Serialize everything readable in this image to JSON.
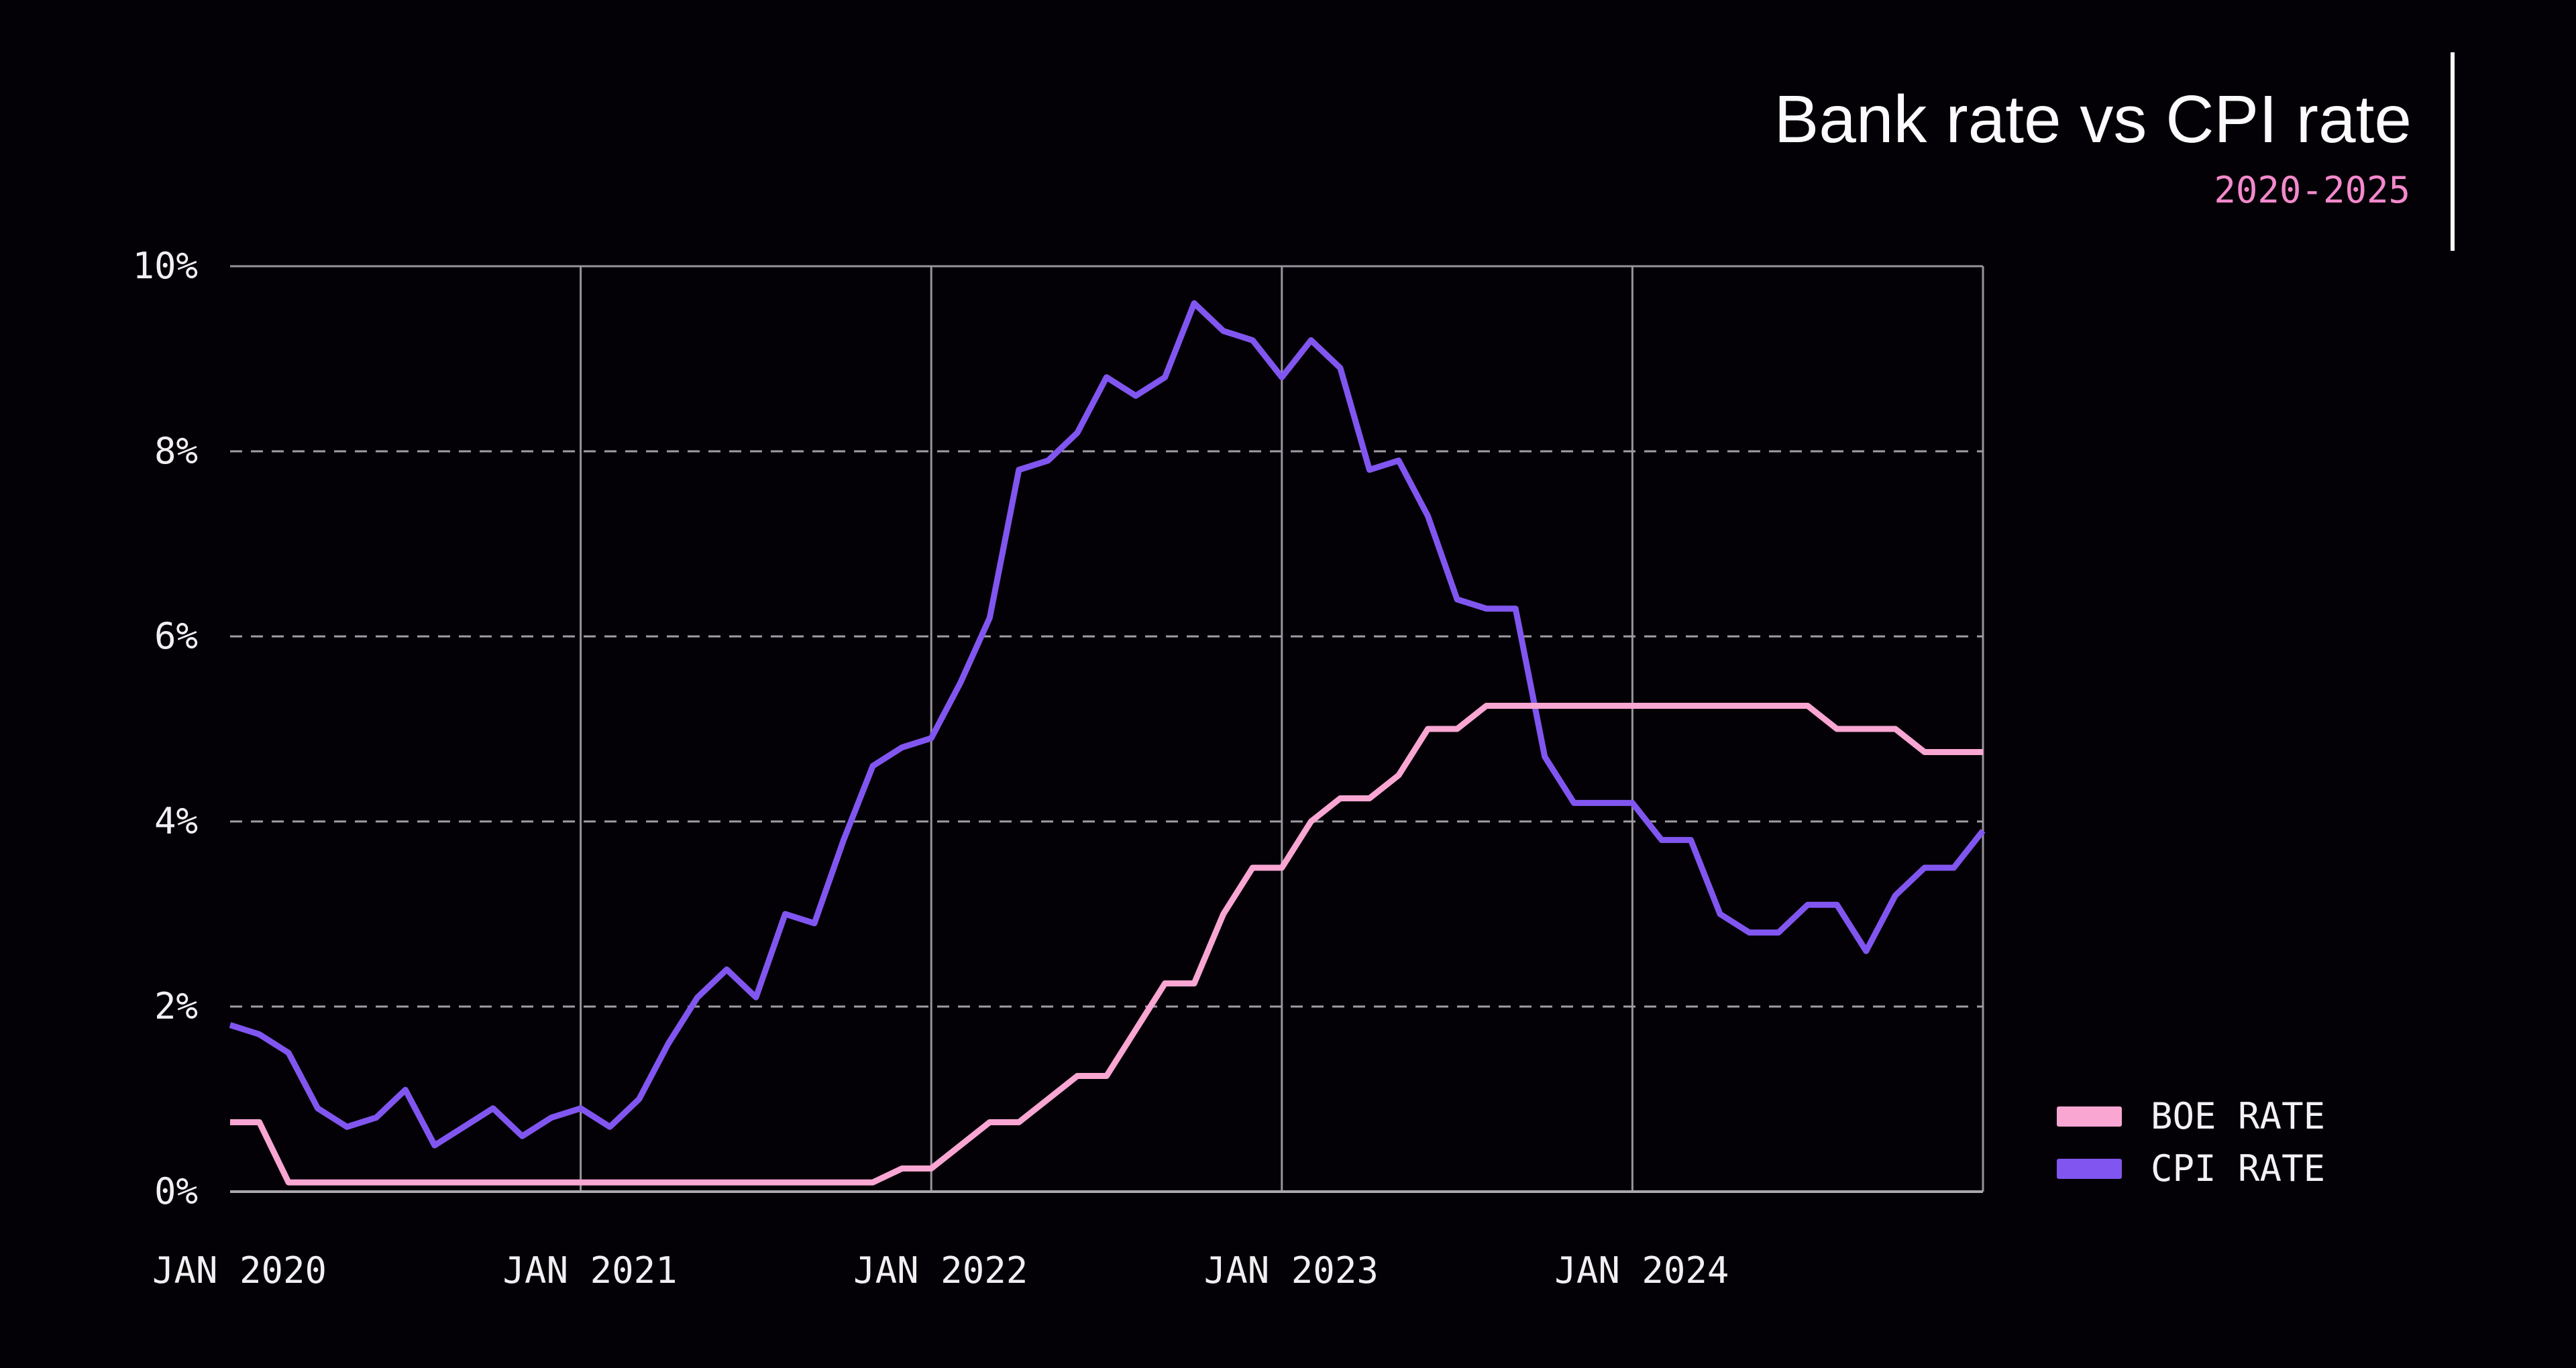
{
  "header": {
    "title": "Bank rate vs CPI rate",
    "subtitle": "2020-2025"
  },
  "colors": {
    "background": "#040106",
    "title_text": "#fbfafc",
    "subtitle_text": "#f489cd",
    "axis_label_text": "#f2eff3",
    "grid_solid": "#98949b",
    "grid_dashed": "#a09ca4",
    "axis_bottom": "#aaa7ae",
    "boe_line": "#f9a6d3",
    "cpi_line": "#8156f0"
  },
  "legend": {
    "items": [
      {
        "label": "BOE RATE",
        "color": "#f9a6d3"
      },
      {
        "label": "CPI RATE",
        "color": "#8156f0"
      }
    ]
  },
  "chart_data": {
    "type": "line",
    "title": "Bank rate vs CPI rate",
    "subtitle": "2020-2025",
    "xlabel": "",
    "ylabel": "",
    "ylim": [
      0,
      10
    ],
    "grid": "horizontal-dashed, vertical-solid at January of each year",
    "legend_position": "right-bottom",
    "y_tick_labels": [
      "0%",
      "2%",
      "4%",
      "6%",
      "8%",
      "10%"
    ],
    "y_tick_values": [
      0,
      2,
      4,
      6,
      8,
      10
    ],
    "x_tick_labels": [
      "JAN 2020",
      "JAN 2021",
      "JAN 2022",
      "JAN 2023",
      "JAN 2024"
    ],
    "x_tick_month_indices": [
      0,
      12,
      24,
      36,
      48
    ],
    "x_months": [
      "2020-01",
      "2020-02",
      "2020-03",
      "2020-04",
      "2020-05",
      "2020-06",
      "2020-07",
      "2020-08",
      "2020-09",
      "2020-10",
      "2020-11",
      "2020-12",
      "2021-01",
      "2021-02",
      "2021-03",
      "2021-04",
      "2021-05",
      "2021-06",
      "2021-07",
      "2021-08",
      "2021-09",
      "2021-10",
      "2021-11",
      "2021-12",
      "2022-01",
      "2022-02",
      "2022-03",
      "2022-04",
      "2022-05",
      "2022-06",
      "2022-07",
      "2022-08",
      "2022-09",
      "2022-10",
      "2022-11",
      "2022-12",
      "2023-01",
      "2023-02",
      "2023-03",
      "2023-04",
      "2023-05",
      "2023-06",
      "2023-07",
      "2023-08",
      "2023-09",
      "2023-10",
      "2023-11",
      "2023-12",
      "2024-01",
      "2024-02",
      "2024-03",
      "2024-04",
      "2024-05",
      "2024-06",
      "2024-07",
      "2024-08",
      "2024-09",
      "2024-10",
      "2024-11",
      "2024-12",
      "2025-01"
    ],
    "series": [
      {
        "name": "BOE RATE",
        "color": "#f9a6d3",
        "values": [
          0.75,
          0.75,
          0.1,
          0.1,
          0.1,
          0.1,
          0.1,
          0.1,
          0.1,
          0.1,
          0.1,
          0.1,
          0.1,
          0.1,
          0.1,
          0.1,
          0.1,
          0.1,
          0.1,
          0.1,
          0.1,
          0.1,
          0.1,
          0.25,
          0.25,
          0.5,
          0.75,
          0.75,
          1.0,
          1.25,
          1.25,
          1.75,
          2.25,
          2.25,
          3.0,
          3.5,
          3.5,
          4.0,
          4.25,
          4.25,
          4.5,
          5.0,
          5.0,
          5.25,
          5.25,
          5.25,
          5.25,
          5.25,
          5.25,
          5.25,
          5.25,
          5.25,
          5.25,
          5.25,
          5.25,
          5.0,
          5.0,
          5.0,
          4.75,
          4.75,
          4.75
        ]
      },
      {
        "name": "CPI RATE",
        "color": "#8156f0",
        "values": [
          1.8,
          1.7,
          1.5,
          0.9,
          0.7,
          0.8,
          1.1,
          0.5,
          0.7,
          0.9,
          0.6,
          0.8,
          0.9,
          0.7,
          1.0,
          1.6,
          2.1,
          2.4,
          2.1,
          3.0,
          2.9,
          3.8,
          4.6,
          4.8,
          4.9,
          5.5,
          6.2,
          7.8,
          7.9,
          8.2,
          8.8,
          8.6,
          8.8,
          9.6,
          9.3,
          9.2,
          8.8,
          9.2,
          8.9,
          7.8,
          7.9,
          7.3,
          6.4,
          6.3,
          6.3,
          4.7,
          4.2,
          4.2,
          4.2,
          3.8,
          3.8,
          3.0,
          2.8,
          2.8,
          3.1,
          3.1,
          2.6,
          3.2,
          3.5,
          3.5,
          3.9
        ]
      }
    ]
  }
}
